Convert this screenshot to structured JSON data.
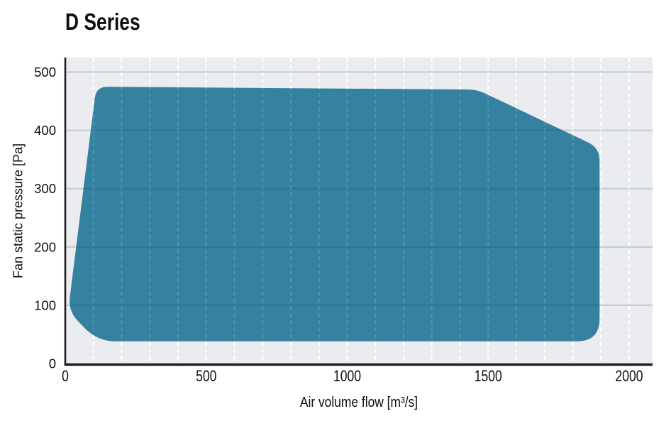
{
  "title": "D Series",
  "chart_data": {
    "type": "area",
    "title": "D Series",
    "xlabel": "Air volume flow [m³/s]",
    "ylabel": "Fan static pressure [Pa]",
    "xlim": [
      0,
      2083
    ],
    "ylim": [
      0,
      525
    ],
    "xticks": [
      0,
      500,
      1000,
      1500,
      2000
    ],
    "yticks": [
      0,
      100,
      200,
      300,
      400,
      500
    ],
    "x_minor_grid_step": 100,
    "y_grid_step": 100,
    "grid": true,
    "legend": false,
    "series": [
      {
        "name": "operating-envelope",
        "type": "filled-polygon",
        "points": [
          [
            10,
            90
          ],
          [
            110,
            475
          ],
          [
            1460,
            470
          ],
          [
            1895,
            370
          ],
          [
            1895,
            38
          ],
          [
            115,
            38
          ]
        ]
      }
    ],
    "colors": {
      "envelope_fill": "#3481a0",
      "plot_background": "#ebecef",
      "horizontal_grid": "rgba(35,55,85,0.17)",
      "vertical_grid": "#ffffff",
      "axis": "#1e1e1e",
      "text": "#0f0f0f"
    }
  }
}
